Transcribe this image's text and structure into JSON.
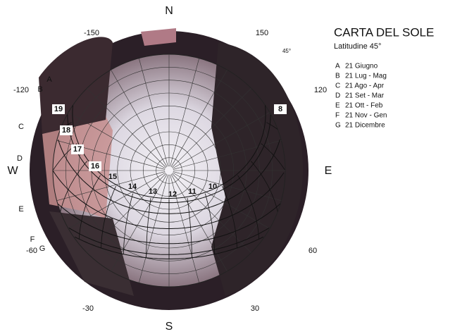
{
  "header": {
    "title": "CARTA DEL SOLE",
    "subtitle": "Latitudine 45°"
  },
  "compass": [
    "N",
    "S",
    "W",
    "E"
  ],
  "azimuth_labels": [
    "-150",
    "150",
    "-120",
    "120",
    "-60",
    "60",
    "-30",
    "30",
    "45°"
  ],
  "curve_letters": [
    "A",
    "B",
    "C",
    "D",
    "E",
    "F",
    "G"
  ],
  "hour_labels": [
    "19",
    "18",
    "17",
    "16",
    "15",
    "14",
    "13",
    "12",
    "11",
    "10",
    "8"
  ],
  "legend": [
    {
      "letter": "A",
      "text": "21 Giugno"
    },
    {
      "letter": "B",
      "text": "21 Lug - Mag"
    },
    {
      "letter": "C",
      "text": "21 Ago - Apr"
    },
    {
      "letter": "D",
      "text": "21 Set - Mar"
    },
    {
      "letter": "E",
      "text": "21 Ott - Feb"
    },
    {
      "letter": "F",
      "text": "21 Nov - Gen"
    },
    {
      "letter": "G",
      "text": "21 Dicembre"
    }
  ]
}
